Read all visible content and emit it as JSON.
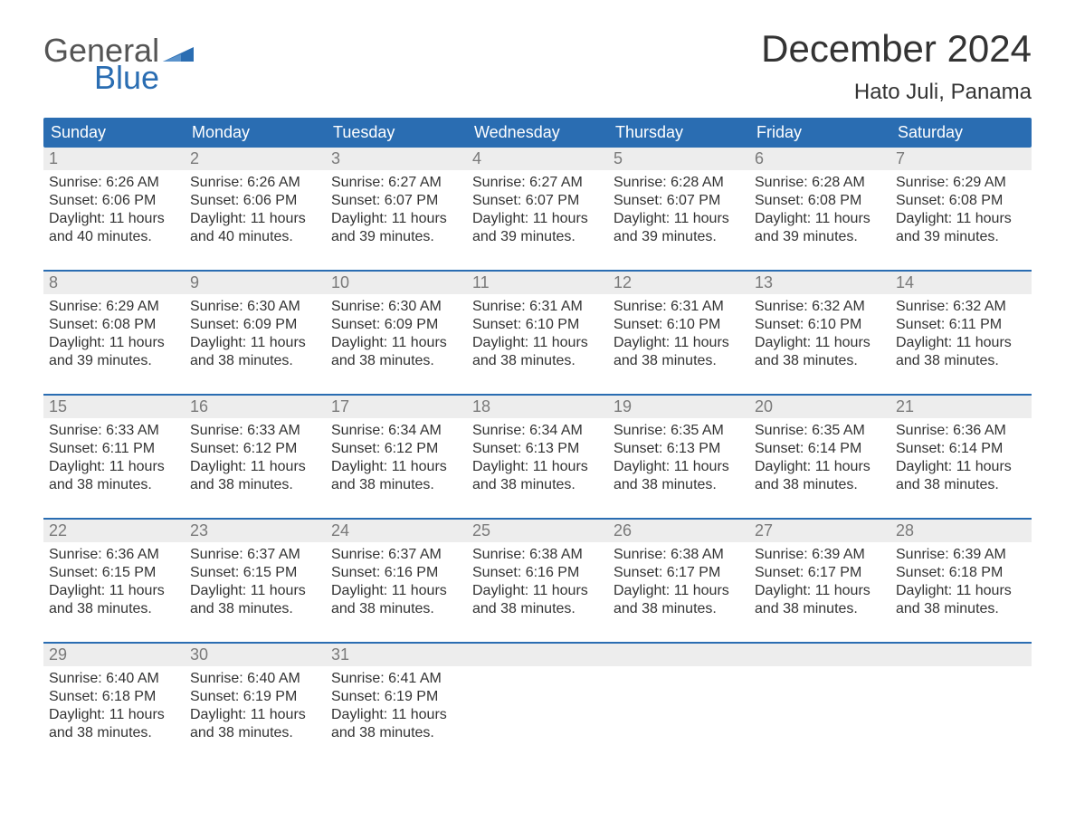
{
  "logo": {
    "general": "General",
    "blue": "Blue"
  },
  "title": "December 2024",
  "location": "Hato Juli, Panama",
  "colors": {
    "header_bg": "#2a6db2",
    "header_text": "#ffffff",
    "daynum_bg": "#ededed",
    "daynum_text": "#7a7a7a",
    "body_text": "#333333",
    "week_border": "#2a6db2",
    "logo_gray": "#555555",
    "logo_blue": "#2a6db2",
    "background": "#ffffff"
  },
  "typography": {
    "title_fontsize": 42,
    "location_fontsize": 24,
    "dayhead_fontsize": 18,
    "daynum_fontsize": 18,
    "details_fontsize": 16,
    "logo_fontsize": 36
  },
  "day_headers": [
    "Sunday",
    "Monday",
    "Tuesday",
    "Wednesday",
    "Thursday",
    "Friday",
    "Saturday"
  ],
  "weeks": [
    {
      "days": [
        {
          "num": "1",
          "sunrise": "Sunrise: 6:26 AM",
          "sunset": "Sunset: 6:06 PM",
          "d1": "Daylight: 11 hours",
          "d2": "and 40 minutes."
        },
        {
          "num": "2",
          "sunrise": "Sunrise: 6:26 AM",
          "sunset": "Sunset: 6:06 PM",
          "d1": "Daylight: 11 hours",
          "d2": "and 40 minutes."
        },
        {
          "num": "3",
          "sunrise": "Sunrise: 6:27 AM",
          "sunset": "Sunset: 6:07 PM",
          "d1": "Daylight: 11 hours",
          "d2": "and 39 minutes."
        },
        {
          "num": "4",
          "sunrise": "Sunrise: 6:27 AM",
          "sunset": "Sunset: 6:07 PM",
          "d1": "Daylight: 11 hours",
          "d2": "and 39 minutes."
        },
        {
          "num": "5",
          "sunrise": "Sunrise: 6:28 AM",
          "sunset": "Sunset: 6:07 PM",
          "d1": "Daylight: 11 hours",
          "d2": "and 39 minutes."
        },
        {
          "num": "6",
          "sunrise": "Sunrise: 6:28 AM",
          "sunset": "Sunset: 6:08 PM",
          "d1": "Daylight: 11 hours",
          "d2": "and 39 minutes."
        },
        {
          "num": "7",
          "sunrise": "Sunrise: 6:29 AM",
          "sunset": "Sunset: 6:08 PM",
          "d1": "Daylight: 11 hours",
          "d2": "and 39 minutes."
        }
      ]
    },
    {
      "days": [
        {
          "num": "8",
          "sunrise": "Sunrise: 6:29 AM",
          "sunset": "Sunset: 6:08 PM",
          "d1": "Daylight: 11 hours",
          "d2": "and 39 minutes."
        },
        {
          "num": "9",
          "sunrise": "Sunrise: 6:30 AM",
          "sunset": "Sunset: 6:09 PM",
          "d1": "Daylight: 11 hours",
          "d2": "and 38 minutes."
        },
        {
          "num": "10",
          "sunrise": "Sunrise: 6:30 AM",
          "sunset": "Sunset: 6:09 PM",
          "d1": "Daylight: 11 hours",
          "d2": "and 38 minutes."
        },
        {
          "num": "11",
          "sunrise": "Sunrise: 6:31 AM",
          "sunset": "Sunset: 6:10 PM",
          "d1": "Daylight: 11 hours",
          "d2": "and 38 minutes."
        },
        {
          "num": "12",
          "sunrise": "Sunrise: 6:31 AM",
          "sunset": "Sunset: 6:10 PM",
          "d1": "Daylight: 11 hours",
          "d2": "and 38 minutes."
        },
        {
          "num": "13",
          "sunrise": "Sunrise: 6:32 AM",
          "sunset": "Sunset: 6:10 PM",
          "d1": "Daylight: 11 hours",
          "d2": "and 38 minutes."
        },
        {
          "num": "14",
          "sunrise": "Sunrise: 6:32 AM",
          "sunset": "Sunset: 6:11 PM",
          "d1": "Daylight: 11 hours",
          "d2": "and 38 minutes."
        }
      ]
    },
    {
      "days": [
        {
          "num": "15",
          "sunrise": "Sunrise: 6:33 AM",
          "sunset": "Sunset: 6:11 PM",
          "d1": "Daylight: 11 hours",
          "d2": "and 38 minutes."
        },
        {
          "num": "16",
          "sunrise": "Sunrise: 6:33 AM",
          "sunset": "Sunset: 6:12 PM",
          "d1": "Daylight: 11 hours",
          "d2": "and 38 minutes."
        },
        {
          "num": "17",
          "sunrise": "Sunrise: 6:34 AM",
          "sunset": "Sunset: 6:12 PM",
          "d1": "Daylight: 11 hours",
          "d2": "and 38 minutes."
        },
        {
          "num": "18",
          "sunrise": "Sunrise: 6:34 AM",
          "sunset": "Sunset: 6:13 PM",
          "d1": "Daylight: 11 hours",
          "d2": "and 38 minutes."
        },
        {
          "num": "19",
          "sunrise": "Sunrise: 6:35 AM",
          "sunset": "Sunset: 6:13 PM",
          "d1": "Daylight: 11 hours",
          "d2": "and 38 minutes."
        },
        {
          "num": "20",
          "sunrise": "Sunrise: 6:35 AM",
          "sunset": "Sunset: 6:14 PM",
          "d1": "Daylight: 11 hours",
          "d2": "and 38 minutes."
        },
        {
          "num": "21",
          "sunrise": "Sunrise: 6:36 AM",
          "sunset": "Sunset: 6:14 PM",
          "d1": "Daylight: 11 hours",
          "d2": "and 38 minutes."
        }
      ]
    },
    {
      "days": [
        {
          "num": "22",
          "sunrise": "Sunrise: 6:36 AM",
          "sunset": "Sunset: 6:15 PM",
          "d1": "Daylight: 11 hours",
          "d2": "and 38 minutes."
        },
        {
          "num": "23",
          "sunrise": "Sunrise: 6:37 AM",
          "sunset": "Sunset: 6:15 PM",
          "d1": "Daylight: 11 hours",
          "d2": "and 38 minutes."
        },
        {
          "num": "24",
          "sunrise": "Sunrise: 6:37 AM",
          "sunset": "Sunset: 6:16 PM",
          "d1": "Daylight: 11 hours",
          "d2": "and 38 minutes."
        },
        {
          "num": "25",
          "sunrise": "Sunrise: 6:38 AM",
          "sunset": "Sunset: 6:16 PM",
          "d1": "Daylight: 11 hours",
          "d2": "and 38 minutes."
        },
        {
          "num": "26",
          "sunrise": "Sunrise: 6:38 AM",
          "sunset": "Sunset: 6:17 PM",
          "d1": "Daylight: 11 hours",
          "d2": "and 38 minutes."
        },
        {
          "num": "27",
          "sunrise": "Sunrise: 6:39 AM",
          "sunset": "Sunset: 6:17 PM",
          "d1": "Daylight: 11 hours",
          "d2": "and 38 minutes."
        },
        {
          "num": "28",
          "sunrise": "Sunrise: 6:39 AM",
          "sunset": "Sunset: 6:18 PM",
          "d1": "Daylight: 11 hours",
          "d2": "and 38 minutes."
        }
      ]
    },
    {
      "days": [
        {
          "num": "29",
          "sunrise": "Sunrise: 6:40 AM",
          "sunset": "Sunset: 6:18 PM",
          "d1": "Daylight: 11 hours",
          "d2": "and 38 minutes."
        },
        {
          "num": "30",
          "sunrise": "Sunrise: 6:40 AM",
          "sunset": "Sunset: 6:19 PM",
          "d1": "Daylight: 11 hours",
          "d2": "and 38 minutes."
        },
        {
          "num": "31",
          "sunrise": "Sunrise: 6:41 AM",
          "sunset": "Sunset: 6:19 PM",
          "d1": "Daylight: 11 hours",
          "d2": "and 38 minutes."
        },
        null,
        null,
        null,
        null
      ]
    }
  ]
}
